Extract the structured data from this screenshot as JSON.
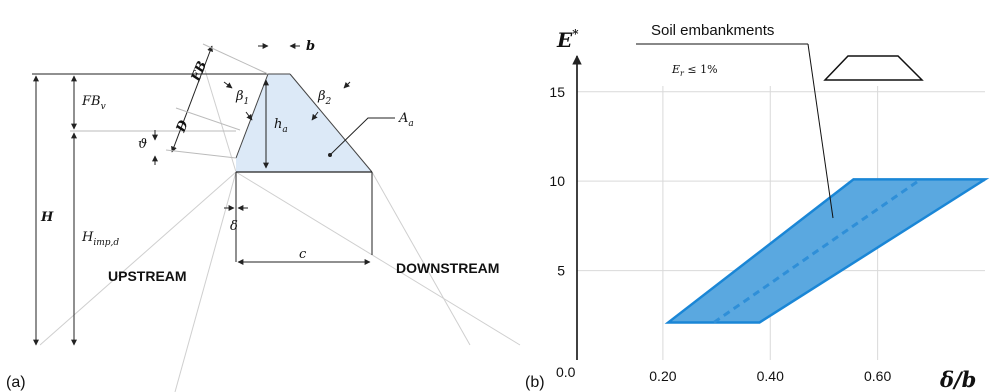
{
  "panel_a": {
    "panel_label": "(a)",
    "labels": {
      "b": "b",
      "FB": "FB",
      "FBv": "FB",
      "FBv_sub": "v",
      "beta1": "β",
      "beta1_sub": "1",
      "beta2": "β",
      "beta2_sub": "2",
      "D": "D",
      "theta": "ϑ",
      "ha": "h",
      "ha_sub": "a",
      "Aa": "A",
      "Aa_sub": "a",
      "H": "H",
      "Himp": "H",
      "Himp_sub": "imp,d",
      "delta": "δ",
      "c": "c",
      "upstream": "UPSTREAM",
      "downstream": "DOWNSTREAM"
    },
    "colors": {
      "fill": "#dce9f7",
      "line": "#222222",
      "guide": "#c8c8c8"
    }
  },
  "panel_b": {
    "panel_label": "(b)",
    "ylabel": "E",
    "ylabel_sup": "*",
    "xlabel": "δ/b",
    "annotation": "Soil embankments",
    "subannotation": "E",
    "subannotation_sub": "r",
    "subannotation_rest": " ≤ 1%",
    "origin_label": "0.0",
    "icon": "trapezoid-embankment-icon",
    "colors": {
      "band_fill": "#5aa8e0",
      "band_edge": "#1a86d6",
      "median": "#2f8fd8",
      "grid": "#d9d9d9"
    }
  },
  "chart_data": {
    "type": "area",
    "x_tick_labels": [
      "0.20",
      "0.40",
      "0.60"
    ],
    "y_tick_labels": [
      "5",
      "10",
      "15"
    ],
    "x_ticks": [
      0.2,
      0.4,
      0.6
    ],
    "y_ticks": [
      5,
      10,
      15
    ],
    "xlim": [
      0.04,
      0.8
    ],
    "ylim": [
      0,
      17
    ],
    "grid": true,
    "band": {
      "name": "Soil embankments",
      "polygon": [
        [
          0.21,
          2.1
        ],
        [
          0.38,
          2.1
        ],
        [
          0.8,
          10.1
        ],
        [
          0.555,
          10.1
        ]
      ],
      "median": [
        [
          0.295,
          2.1
        ],
        [
          0.68,
          10.1
        ]
      ]
    }
  }
}
